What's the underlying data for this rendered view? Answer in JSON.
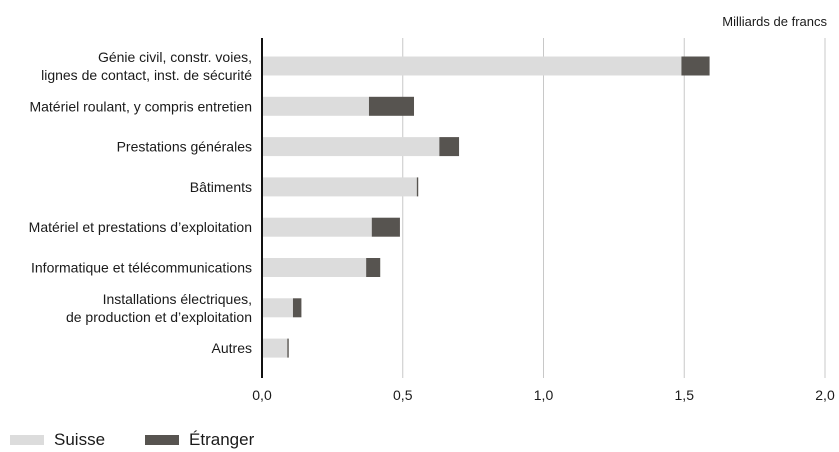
{
  "chart_data": {
    "type": "bar",
    "orientation": "horizontal",
    "stacked": true,
    "unit_label": "Milliards de francs",
    "categories": [
      [
        "Génie civil, constr. voies,",
        "lignes de contact, inst. de sécurité"
      ],
      [
        "Matériel roulant, y compris entretien"
      ],
      [
        "Prestations générales"
      ],
      [
        "Bâtiments"
      ],
      [
        "Matériel et prestations d’exploitation"
      ],
      [
        "Informatique et télécommunications"
      ],
      [
        "Installations électriques,",
        "de production et d’exploitation"
      ],
      [
        "Autres"
      ]
    ],
    "series": [
      {
        "name": "Suisse",
        "color": "#dcdcdc",
        "values": [
          1.49,
          0.38,
          0.63,
          0.55,
          0.39,
          0.37,
          0.11,
          0.09
        ]
      },
      {
        "name": "Étranger",
        "color": "#575450",
        "values": [
          0.1,
          0.16,
          0.07,
          0.005,
          0.1,
          0.05,
          0.03,
          0.005
        ]
      }
    ],
    "xlim": [
      0,
      2.0
    ],
    "xticks": [
      "0,0",
      "0,5",
      "1,0",
      "1,5",
      "2,0"
    ],
    "xtick_values": [
      0,
      0.5,
      1.0,
      1.5,
      2.0
    ],
    "grid": "vertical",
    "legend_position": "bottom-left"
  }
}
